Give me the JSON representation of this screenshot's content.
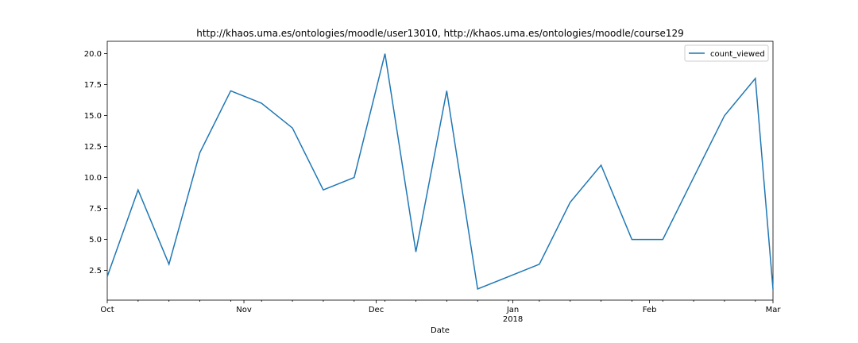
{
  "chart_data": {
    "type": "line",
    "title": "http://khaos.uma.es/ontologies/moodle/user13010, http://khaos.uma.es/ontologies/moodle/course129",
    "xlabel": "Date",
    "ylabel": "",
    "grid": false,
    "legend_position": "top-right",
    "xlim": [
      "2017-10-01",
      "2018-03-01"
    ],
    "ylim": [
      0.1,
      21.0
    ],
    "x_ticks": [
      {
        "date": "2017-10-01",
        "label": "Oct",
        "sublabel": ""
      },
      {
        "date": "2017-11-01",
        "label": "Nov",
        "sublabel": ""
      },
      {
        "date": "2017-12-01",
        "label": "Dec",
        "sublabel": ""
      },
      {
        "date": "2018-01-01",
        "label": "Jan",
        "sublabel": "2018"
      },
      {
        "date": "2018-02-01",
        "label": "Feb",
        "sublabel": ""
      },
      {
        "date": "2018-03-01",
        "label": "Mar",
        "sublabel": ""
      }
    ],
    "x_minor_ticks": [
      "2017-10-08",
      "2017-10-15",
      "2017-10-22",
      "2017-10-29",
      "2017-11-05",
      "2017-11-12",
      "2017-11-19",
      "2017-11-26",
      "2017-12-03",
      "2017-12-10",
      "2017-12-17",
      "2017-12-24",
      "2017-12-31",
      "2018-01-07",
      "2018-01-14",
      "2018-01-21",
      "2018-01-28",
      "2018-02-04",
      "2018-02-11",
      "2018-02-18",
      "2018-02-25"
    ],
    "y_ticks": [
      {
        "value": 2.5,
        "label": "2.5"
      },
      {
        "value": 5.0,
        "label": "5.0"
      },
      {
        "value": 7.5,
        "label": "7.5"
      },
      {
        "value": 10.0,
        "label": "10.0"
      },
      {
        "value": 12.5,
        "label": "12.5"
      },
      {
        "value": 15.0,
        "label": "15.0"
      },
      {
        "value": 17.5,
        "label": "17.5"
      },
      {
        "value": 20.0,
        "label": "20.0"
      }
    ],
    "series": [
      {
        "name": "count_viewed",
        "color": "#1f77b4",
        "x": [
          "2017-10-01",
          "2017-10-08",
          "2017-10-15",
          "2017-10-22",
          "2017-10-29",
          "2017-11-05",
          "2017-11-12",
          "2017-11-19",
          "2017-11-26",
          "2017-12-03",
          "2017-12-10",
          "2017-12-17",
          "2017-12-24",
          "2017-12-31",
          "2018-01-07",
          "2018-01-14",
          "2018-01-21",
          "2018-01-28",
          "2018-02-04",
          "2018-02-11",
          "2018-02-18",
          "2018-02-25",
          "2018-03-04"
        ],
        "values": [
          2,
          9,
          3,
          12,
          17,
          16,
          14,
          9,
          10,
          20,
          4,
          17,
          1,
          2,
          3,
          8,
          11,
          5,
          5,
          10,
          15,
          18,
          1
        ]
      }
    ]
  }
}
